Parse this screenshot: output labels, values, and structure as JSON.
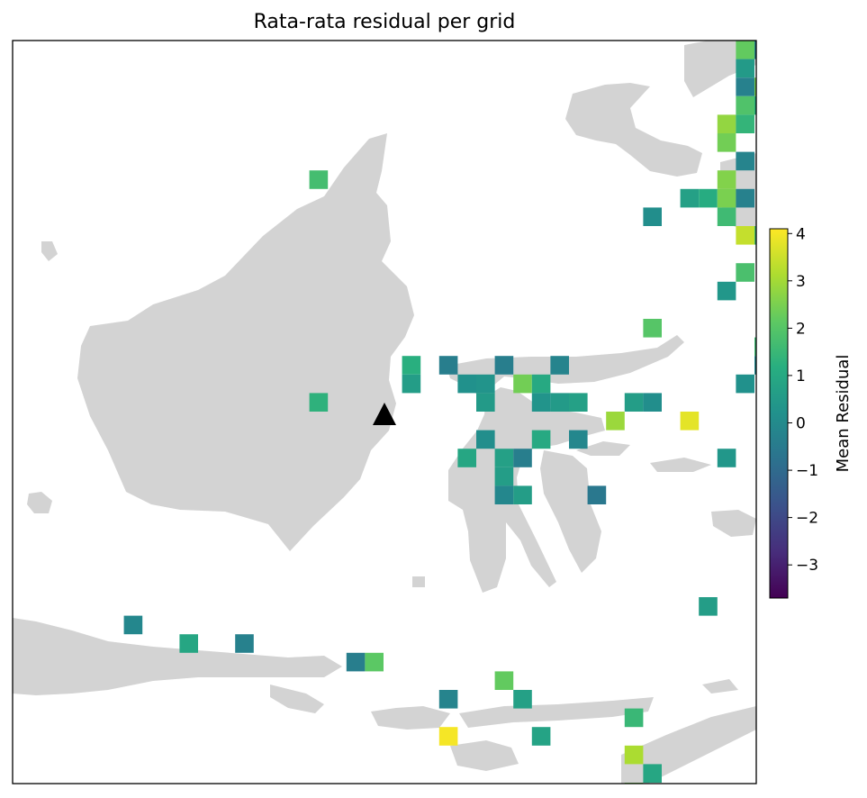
{
  "title": "Rata-rata residual per grid",
  "colorbar": {
    "label": "Mean Residual",
    "min": -3.7,
    "max": 4.1,
    "ticks": [
      4,
      3,
      2,
      1,
      0,
      -1,
      -2,
      -3
    ],
    "tick_labels": [
      "4",
      "3",
      "2",
      "1",
      "0",
      "−1",
      "−2",
      "−3"
    ],
    "colormap": "viridis"
  },
  "colors": {
    "land": "#d3d3d3",
    "ocean": "#ffffff",
    "frame": "#000000",
    "station_marker": "#000000"
  },
  "station_marker": {
    "icon": "triangle-icon",
    "grid": [
      20,
      20.5
    ]
  },
  "chart_data": {
    "type": "heatmap",
    "title": "Rata-rata residual per grid",
    "colorbar_label": "Mean Residual",
    "value_range": [
      -3.7,
      4.1
    ],
    "grid_units": "grid cell index (column, row)",
    "cells": [
      {
        "col": 39,
        "row": 0,
        "value": 2.2
      },
      {
        "col": 40,
        "row": 0,
        "value": -0.3
      },
      {
        "col": 39,
        "row": 1,
        "value": 0.5
      },
      {
        "col": 39,
        "row": 2,
        "value": -0.3
      },
      {
        "col": 40,
        "row": 2,
        "value": 2.5
      },
      {
        "col": 39,
        "row": 3,
        "value": 1.9
      },
      {
        "col": 40,
        "row": 3,
        "value": 1.2
      },
      {
        "col": 38,
        "row": 4,
        "value": 2.8
      },
      {
        "col": 39,
        "row": 4,
        "value": 1.4
      },
      {
        "col": 38,
        "row": 5,
        "value": 2.4
      },
      {
        "col": 39,
        "row": 6,
        "value": -0.2
      },
      {
        "col": 16,
        "row": 7,
        "value": 1.7
      },
      {
        "col": 38,
        "row": 7,
        "value": 2.6
      },
      {
        "col": 36,
        "row": 8,
        "value": 0.7
      },
      {
        "col": 37,
        "row": 8,
        "value": 1.1
      },
      {
        "col": 38,
        "row": 8,
        "value": 2.5
      },
      {
        "col": 39,
        "row": 8,
        "value": -0.3
      },
      {
        "col": 34,
        "row": 9,
        "value": 0.1
      },
      {
        "col": 38,
        "row": 9,
        "value": 1.6
      },
      {
        "col": 39,
        "row": 10,
        "value": 3.4
      },
      {
        "col": 40,
        "row": 10,
        "value": 1.7
      },
      {
        "col": 39,
        "row": 12,
        "value": 1.8
      },
      {
        "col": 38,
        "row": 13,
        "value": 0.4
      },
      {
        "col": 34,
        "row": 15,
        "value": 2.0
      },
      {
        "col": 40,
        "row": 16,
        "value": 1.6
      },
      {
        "col": 21,
        "row": 17,
        "value": 1.2
      },
      {
        "col": 23,
        "row": 17,
        "value": -0.4
      },
      {
        "col": 26,
        "row": 17,
        "value": -0.4
      },
      {
        "col": 29,
        "row": 17,
        "value": -0.2
      },
      {
        "col": 40,
        "row": 17,
        "value": -0.1
      },
      {
        "col": 21,
        "row": 18,
        "value": 0.6
      },
      {
        "col": 24,
        "row": 18,
        "value": 0.2
      },
      {
        "col": 25,
        "row": 18,
        "value": 0.3
      },
      {
        "col": 27,
        "row": 18,
        "value": 2.4
      },
      {
        "col": 28,
        "row": 18,
        "value": 1.0
      },
      {
        "col": 39,
        "row": 18,
        "value": 0.2
      },
      {
        "col": 16,
        "row": 19,
        "value": 1.3
      },
      {
        "col": 25,
        "row": 19,
        "value": 0.5
      },
      {
        "col": 28,
        "row": 19,
        "value": 0.3
      },
      {
        "col": 29,
        "row": 19,
        "value": 0.5
      },
      {
        "col": 30,
        "row": 19,
        "value": 0.7
      },
      {
        "col": 33,
        "row": 19,
        "value": 0.6
      },
      {
        "col": 34,
        "row": 19,
        "value": 0.1
      },
      {
        "col": 32,
        "row": 20,
        "value": 2.9
      },
      {
        "col": 36,
        "row": 20,
        "value": 3.8
      },
      {
        "col": 25,
        "row": 21,
        "value": 0.1
      },
      {
        "col": 28,
        "row": 21,
        "value": 1.0
      },
      {
        "col": 30,
        "row": 21,
        "value": -0.1
      },
      {
        "col": 24,
        "row": 22,
        "value": 0.9
      },
      {
        "col": 26,
        "row": 22,
        "value": 0.7
      },
      {
        "col": 27,
        "row": 22,
        "value": -0.4
      },
      {
        "col": 38,
        "row": 22,
        "value": 0.4
      },
      {
        "col": 26,
        "row": 23,
        "value": 0.6
      },
      {
        "col": 26,
        "row": 24,
        "value": -0.1
      },
      {
        "col": 27,
        "row": 24,
        "value": 0.6
      },
      {
        "col": 31,
        "row": 24,
        "value": -0.6
      },
      {
        "col": 37,
        "row": 30,
        "value": 0.6
      },
      {
        "col": 6,
        "row": 31,
        "value": -0.1
      },
      {
        "col": 9,
        "row": 32,
        "value": 0.9
      },
      {
        "col": 12,
        "row": 32,
        "value": -0.3
      },
      {
        "col": 18,
        "row": 33,
        "value": -0.4
      },
      {
        "col": 19,
        "row": 33,
        "value": 2.1
      },
      {
        "col": 26,
        "row": 34,
        "value": 2.2
      },
      {
        "col": 23,
        "row": 35,
        "value": -0.2
      },
      {
        "col": 27,
        "row": 35,
        "value": 0.7
      },
      {
        "col": 33,
        "row": 36,
        "value": 1.5
      },
      {
        "col": 23,
        "row": 37,
        "value": 4.0
      },
      {
        "col": 28,
        "row": 37,
        "value": 0.8
      },
      {
        "col": 33,
        "row": 38,
        "value": 3.1
      },
      {
        "col": 34,
        "row": 39,
        "value": 0.9
      },
      {
        "col": 33,
        "row": 40,
        "value": 2.4
      }
    ]
  }
}
